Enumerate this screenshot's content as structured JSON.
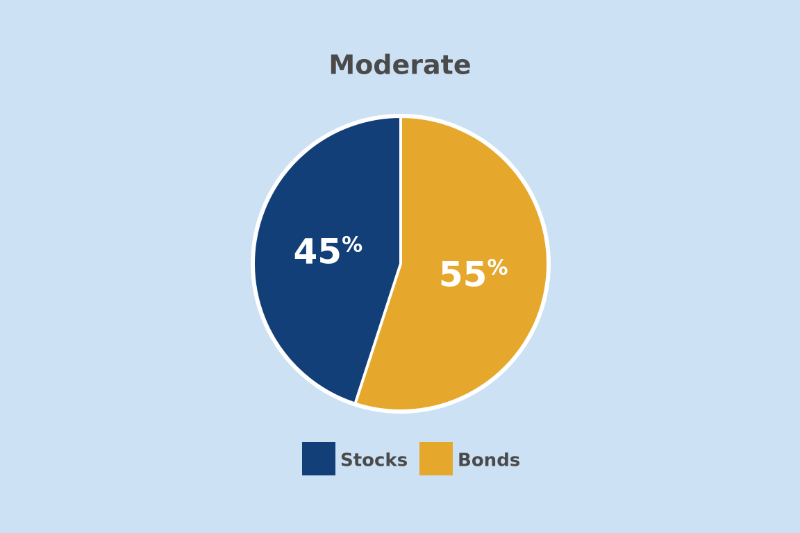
{
  "chart_data": {
    "type": "pie",
    "title": "Moderate",
    "categories": [
      "Stocks",
      "Bonds"
    ],
    "values": [
      45,
      55
    ],
    "value_labels": [
      "45%",
      "55%"
    ],
    "colors": [
      "#133f78",
      "#e6a82c"
    ],
    "legend": "bottom"
  }
}
